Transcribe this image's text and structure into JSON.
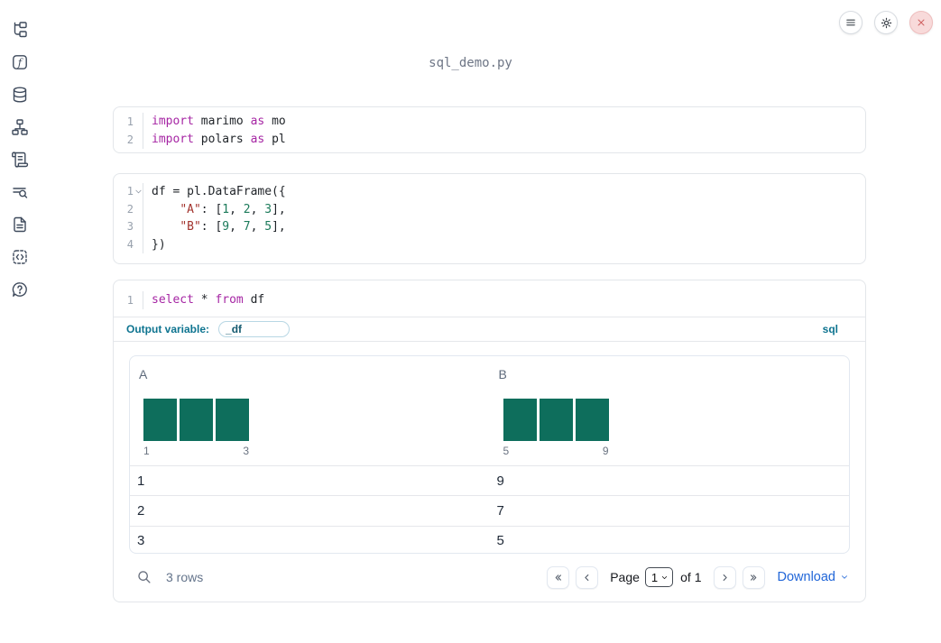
{
  "window": {
    "title": "sql_demo.py"
  },
  "colors": {
    "histogram_bar": "#0E6E5C",
    "keyword": "#A626A4",
    "string": "#A3342E",
    "number": "#1B7A5A",
    "accent_blue": "#2166D8",
    "sql_teal": "#0E7490"
  },
  "sidebar": {
    "items": [
      {
        "icon": "file-tree-icon"
      },
      {
        "icon": "function-icon"
      },
      {
        "icon": "database-icon"
      },
      {
        "icon": "dependency-graph-icon"
      },
      {
        "icon": "scratchpad-icon"
      },
      {
        "icon": "logs-search-icon"
      },
      {
        "icon": "documentation-icon"
      },
      {
        "icon": "snippets-icon"
      },
      {
        "icon": "help-icon"
      }
    ]
  },
  "topbar": {
    "buttons": [
      {
        "icon": "menu-icon"
      },
      {
        "icon": "gear-icon"
      },
      {
        "icon": "close-icon"
      }
    ]
  },
  "cells": [
    {
      "name": "imports-cell",
      "lines": [
        {
          "num": "1",
          "fold": false,
          "tokens": [
            {
              "s": "kw",
              "v": "import"
            },
            {
              "s": "pl",
              "v": " marimo "
            },
            {
              "s": "kw",
              "v": "as"
            },
            {
              "s": "pl",
              "v": " mo"
            }
          ]
        },
        {
          "num": "2",
          "fold": false,
          "tokens": [
            {
              "s": "kw",
              "v": "import"
            },
            {
              "s": "pl",
              "v": " polars "
            },
            {
              "s": "kw",
              "v": "as"
            },
            {
              "s": "pl",
              "v": " pl"
            }
          ]
        }
      ]
    },
    {
      "name": "dataframe-cell",
      "lines": [
        {
          "num": "1",
          "fold": true,
          "tokens": [
            {
              "s": "pl",
              "v": "df = pl.DataFrame({"
            }
          ]
        },
        {
          "num": "2",
          "fold": false,
          "tokens": [
            {
              "s": "pl",
              "v": "    "
            },
            {
              "s": "str",
              "v": "\"A\""
            },
            {
              "s": "pl",
              "v": ": ["
            },
            {
              "s": "num",
              "v": "1"
            },
            {
              "s": "pl",
              "v": ", "
            },
            {
              "s": "num",
              "v": "2"
            },
            {
              "s": "pl",
              "v": ", "
            },
            {
              "s": "num",
              "v": "3"
            },
            {
              "s": "pl",
              "v": "],"
            }
          ]
        },
        {
          "num": "3",
          "fold": false,
          "tokens": [
            {
              "s": "pl",
              "v": "    "
            },
            {
              "s": "str",
              "v": "\"B\""
            },
            {
              "s": "pl",
              "v": ": ["
            },
            {
              "s": "num",
              "v": "9"
            },
            {
              "s": "pl",
              "v": ", "
            },
            {
              "s": "num",
              "v": "7"
            },
            {
              "s": "pl",
              "v": ", "
            },
            {
              "s": "num",
              "v": "5"
            },
            {
              "s": "pl",
              "v": "],"
            }
          ]
        },
        {
          "num": "4",
          "fold": false,
          "tokens": [
            {
              "s": "pl",
              "v": "})"
            }
          ]
        }
      ]
    },
    {
      "name": "sql-cell",
      "lines": [
        {
          "num": "1",
          "fold": false,
          "tokens": [
            {
              "s": "kw",
              "v": "select"
            },
            {
              "s": "pl",
              "v": " * "
            },
            {
              "s": "kw",
              "v": "from"
            },
            {
              "s": "pl",
              "v": " df"
            }
          ]
        }
      ]
    }
  ],
  "sql_cell": {
    "output_variable_label": "Output variable:",
    "output_variable_value": "_df",
    "language_badge": "sql"
  },
  "table": {
    "columns": [
      {
        "name": "A",
        "histogram": {
          "bars": [
            1,
            1,
            1
          ],
          "min_label": "1",
          "max_label": "3"
        }
      },
      {
        "name": "B",
        "histogram": {
          "bars": [
            1,
            1,
            1
          ],
          "min_label": "5",
          "max_label": "9"
        }
      }
    ],
    "rows": [
      [
        "1",
        "9"
      ],
      [
        "2",
        "7"
      ],
      [
        "3",
        "5"
      ]
    ],
    "footer": {
      "row_count_text": "3 rows",
      "page_label": "Page",
      "page_value": "1",
      "of_text": "of 1",
      "download_label": "Download"
    }
  }
}
